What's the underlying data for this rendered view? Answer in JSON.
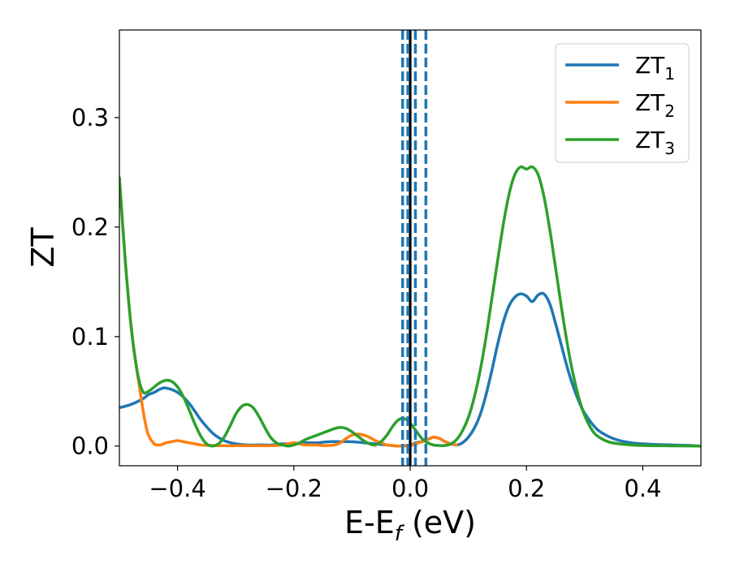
{
  "chart_data": {
    "type": "line",
    "xlabel_main": "E-E",
    "xlabel_sub": "f",
    "xlabel_unit": " (eV)",
    "ylabel": "ZT",
    "xlim": [
      -0.5,
      0.5
    ],
    "ylim": [
      -0.018,
      0.38
    ],
    "xticks": [
      -0.4,
      -0.2,
      0.0,
      0.2,
      0.4
    ],
    "xtick_labels": [
      "−0.4",
      "−0.2",
      "0.0",
      "0.2",
      "0.4"
    ],
    "yticks": [
      0.0,
      0.1,
      0.2,
      0.3
    ],
    "ytick_labels": [
      "0.0",
      "0.1",
      "0.2",
      "0.3"
    ],
    "grid": false,
    "legend_position": "top-right",
    "vlines": [
      {
        "x": 0.0,
        "color": "#000000",
        "style": "solid"
      },
      {
        "x": -0.013,
        "color": "#1f77b4",
        "style": "dashed"
      },
      {
        "x": -0.004,
        "color": "#1f77b4",
        "style": "dashed"
      },
      {
        "x": 0.009,
        "color": "#1f77b4",
        "style": "dashed"
      },
      {
        "x": 0.027,
        "color": "#1f77b4",
        "style": "dashed"
      }
    ],
    "series": [
      {
        "name": "ZT",
        "sub": "1",
        "color": "#1f77b4",
        "x": [
          -0.5,
          -0.48,
          -0.46,
          -0.45,
          -0.44,
          -0.43,
          -0.42,
          -0.4,
          -0.38,
          -0.36,
          -0.34,
          -0.32,
          -0.3,
          -0.28,
          -0.26,
          -0.24,
          -0.22,
          -0.2,
          -0.18,
          -0.16,
          -0.14,
          -0.12,
          -0.1,
          -0.08,
          -0.06,
          -0.04,
          -0.02,
          0.0,
          0.01,
          0.02,
          0.03,
          0.04,
          0.05,
          0.06,
          0.07,
          0.08,
          0.09,
          0.1,
          0.11,
          0.12,
          0.13,
          0.14,
          0.15,
          0.16,
          0.17,
          0.18,
          0.19,
          0.2,
          0.21,
          0.22,
          0.23,
          0.24,
          0.25,
          0.26,
          0.27,
          0.28,
          0.29,
          0.3,
          0.32,
          0.34,
          0.36,
          0.38,
          0.4,
          0.42,
          0.45,
          0.48,
          0.5
        ],
        "y": [
          0.035,
          0.038,
          0.043,
          0.047,
          0.049,
          0.052,
          0.053,
          0.049,
          0.039,
          0.024,
          0.012,
          0.005,
          0.002,
          0.001,
          0.001,
          0.001,
          0.002,
          0.002,
          0.003,
          0.003,
          0.004,
          0.004,
          0.004,
          0.003,
          0.002,
          0.001,
          0.0,
          0.001,
          0.003,
          0.004,
          0.006,
          0.008,
          0.007,
          0.004,
          0.002,
          0.001,
          0.003,
          0.008,
          0.016,
          0.028,
          0.046,
          0.068,
          0.092,
          0.113,
          0.128,
          0.136,
          0.139,
          0.137,
          0.132,
          0.138,
          0.139,
          0.13,
          0.112,
          0.092,
          0.072,
          0.055,
          0.041,
          0.03,
          0.016,
          0.009,
          0.005,
          0.003,
          0.002,
          0.0015,
          0.001,
          0.0005,
          0.0
        ]
      },
      {
        "name": "ZT",
        "sub": "2",
        "color": "#ff7f0e",
        "x": [
          -0.5,
          -0.49,
          -0.48,
          -0.47,
          -0.46,
          -0.455,
          -0.45,
          -0.44,
          -0.43,
          -0.42,
          -0.41,
          -0.4,
          -0.39,
          -0.38,
          -0.37,
          -0.36,
          -0.34,
          -0.32,
          -0.3,
          -0.28,
          -0.26,
          -0.24,
          -0.22,
          -0.21,
          -0.2,
          -0.19,
          -0.18,
          -0.16,
          -0.15,
          -0.14,
          -0.13,
          -0.12,
          -0.11,
          -0.1,
          -0.09,
          -0.08,
          -0.07,
          -0.06,
          -0.05,
          -0.04,
          -0.03,
          -0.02,
          -0.01,
          0.0,
          0.01,
          0.02,
          0.03,
          0.04,
          0.05,
          0.06,
          0.07,
          0.08
        ],
        "y": [
          0.245,
          0.17,
          0.11,
          0.07,
          0.035,
          0.02,
          0.01,
          0.002,
          0.001,
          0.003,
          0.004,
          0.005,
          0.004,
          0.003,
          0.002,
          0.001,
          0.0005,
          0.0003,
          0.0003,
          0.0003,
          0.0003,
          0.0003,
          0.001,
          0.002,
          0.003,
          0.002,
          0.001,
          0.001,
          0.0005,
          0.0005,
          0.001,
          0.003,
          0.007,
          0.01,
          0.011,
          0.01,
          0.008,
          0.005,
          0.003,
          0.001,
          0.0005,
          0.0,
          0.0,
          0.0005,
          0.002,
          0.004,
          0.006,
          0.008,
          0.007,
          0.004,
          0.002,
          0.001
        ]
      },
      {
        "name": "ZT",
        "sub": "3",
        "color": "#2ca02c",
        "x": [
          -0.5,
          -0.49,
          -0.48,
          -0.47,
          -0.46,
          -0.45,
          -0.44,
          -0.43,
          -0.42,
          -0.41,
          -0.4,
          -0.39,
          -0.38,
          -0.37,
          -0.36,
          -0.35,
          -0.34,
          -0.33,
          -0.32,
          -0.31,
          -0.3,
          -0.29,
          -0.28,
          -0.27,
          -0.26,
          -0.25,
          -0.24,
          -0.23,
          -0.22,
          -0.21,
          -0.2,
          -0.19,
          -0.18,
          -0.17,
          -0.16,
          -0.15,
          -0.14,
          -0.13,
          -0.12,
          -0.11,
          -0.1,
          -0.09,
          -0.08,
          -0.07,
          -0.06,
          -0.05,
          -0.04,
          -0.03,
          -0.02,
          -0.01,
          0.0,
          0.01,
          0.02,
          0.03,
          0.04,
          0.05,
          0.06,
          0.07,
          0.08,
          0.09,
          0.1,
          0.11,
          0.12,
          0.13,
          0.14,
          0.15,
          0.16,
          0.17,
          0.18,
          0.19,
          0.2,
          0.21,
          0.22,
          0.23,
          0.24,
          0.25,
          0.26,
          0.27,
          0.28,
          0.29,
          0.3,
          0.31,
          0.32,
          0.34,
          0.36,
          0.38,
          0.4,
          0.42,
          0.45,
          0.48,
          0.5
        ],
        "y": [
          0.245,
          0.17,
          0.11,
          0.07,
          0.05,
          0.05,
          0.054,
          0.058,
          0.06,
          0.059,
          0.054,
          0.045,
          0.033,
          0.02,
          0.009,
          0.002,
          0.0,
          0.002,
          0.008,
          0.018,
          0.029,
          0.036,
          0.038,
          0.035,
          0.027,
          0.017,
          0.008,
          0.003,
          0.001,
          0.0,
          0.001,
          0.003,
          0.006,
          0.008,
          0.01,
          0.012,
          0.014,
          0.016,
          0.017,
          0.016,
          0.013,
          0.009,
          0.005,
          0.002,
          0.001,
          0.004,
          0.01,
          0.018,
          0.024,
          0.025,
          0.021,
          0.014,
          0.007,
          0.003,
          0.001,
          0.0005,
          0.0005,
          0.002,
          0.006,
          0.014,
          0.026,
          0.044,
          0.068,
          0.098,
          0.133,
          0.168,
          0.202,
          0.23,
          0.248,
          0.255,
          0.253,
          0.255,
          0.248,
          0.228,
          0.198,
          0.163,
          0.127,
          0.094,
          0.066,
          0.044,
          0.028,
          0.017,
          0.01,
          0.004,
          0.002,
          0.001,
          0.0005,
          0.0003,
          0.0002,
          0.0001,
          0.0
        ]
      }
    ]
  }
}
